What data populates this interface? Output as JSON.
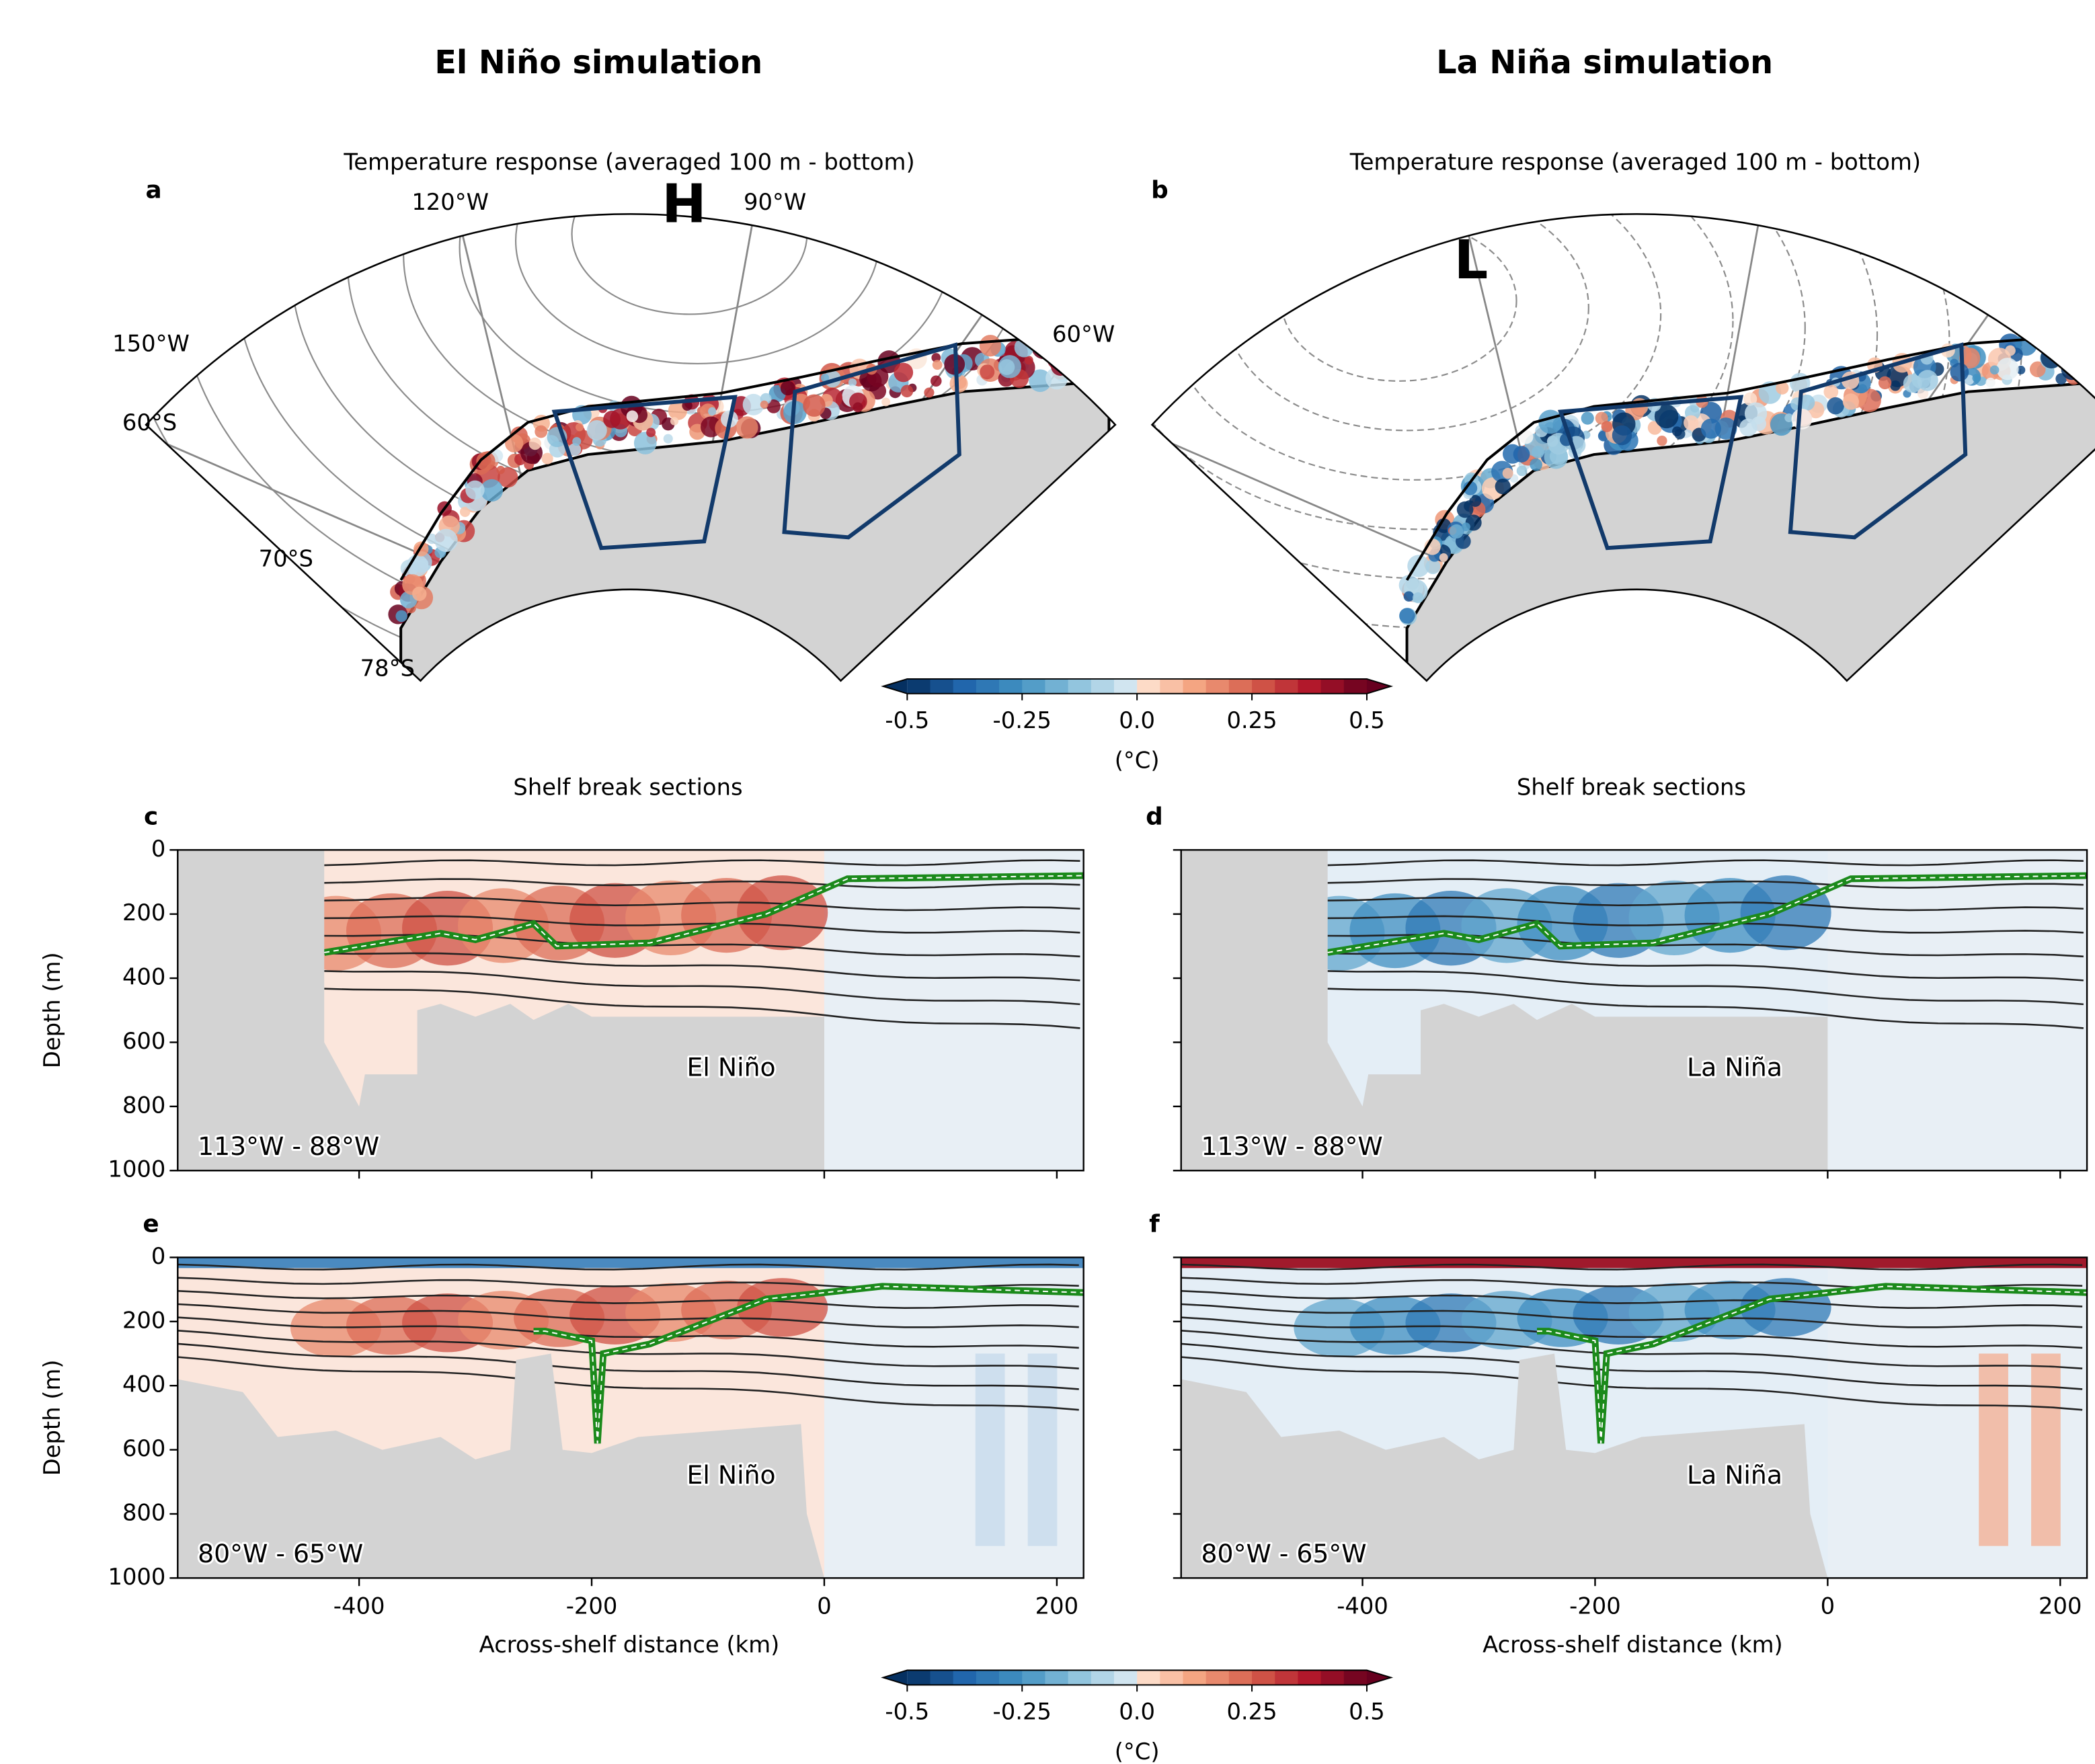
{
  "column_titles": [
    "El Niño simulation",
    "La Niña simulation"
  ],
  "chart_data": [
    {
      "type": "map",
      "panel_label": "a",
      "title": "Temperature response (averaged 100 m - bottom)",
      "meridian_labels": [
        "150°W",
        "120°W",
        "90°W",
        "60°W"
      ],
      "parallel_labels": [
        "60°S",
        "70°S",
        "78°S"
      ],
      "pressure_center": "H"
    },
    {
      "type": "map",
      "panel_label": "b",
      "title": "Temperature response (averaged 100 m - bottom)",
      "pressure_center": "L"
    },
    {
      "type": "section",
      "panel_label": "c",
      "title": "Shelf break sections",
      "region": "113°W - 88°W",
      "scenario": "El Niño",
      "ylabel": "Depth (m)",
      "ylim": [
        1000,
        0
      ],
      "yticks": [
        0,
        200,
        400,
        600,
        800,
        1000
      ],
      "xlim": [
        -556,
        223
      ],
      "xticks": [
        -400,
        -200,
        0,
        200
      ]
    },
    {
      "type": "section",
      "panel_label": "d",
      "title": "Shelf break sections",
      "region": "113°W - 88°W",
      "scenario": "La Niña",
      "ylim": [
        1000,
        0
      ],
      "yticks": [
        0,
        200,
        400,
        600,
        800,
        1000
      ],
      "xlim": [
        -556,
        223
      ],
      "xticks": [
        -400,
        -200,
        0,
        200
      ]
    },
    {
      "type": "section",
      "panel_label": "e",
      "region": "80°W - 65°W",
      "scenario": "El Niño",
      "ylabel": "Depth (m)",
      "xlabel": "Across-shelf distance (km)",
      "ylim": [
        1000,
        0
      ],
      "yticks": [
        0,
        200,
        400,
        600,
        800,
        1000
      ],
      "xlim": [
        -556,
        223
      ],
      "xticks": [
        -400,
        -200,
        0,
        200
      ]
    },
    {
      "type": "section",
      "panel_label": "f",
      "region": "80°W - 65°W",
      "scenario": "La Niña",
      "xlabel": "Across-shelf distance (km)",
      "ylim": [
        1000,
        0
      ],
      "yticks": [
        0,
        200,
        400,
        600,
        800,
        1000
      ],
      "xlim": [
        -556,
        223
      ],
      "xticks": [
        -400,
        -200,
        0,
        200
      ]
    }
  ],
  "colorbars": [
    {
      "lim": [
        -0.5,
        0.5
      ],
      "ticks": [
        -0.5,
        -0.25,
        {
          "value": 0,
          "label": "0.0"
        },
        0.25,
        0.5
      ],
      "label": "(°C)"
    },
    {
      "lim": [
        -0.5,
        0.5
      ],
      "ticks": [
        -0.5,
        -0.25,
        {
          "value": 0,
          "label": "0.0"
        },
        0.25,
        0.5
      ],
      "label": "(°C)"
    }
  ]
}
